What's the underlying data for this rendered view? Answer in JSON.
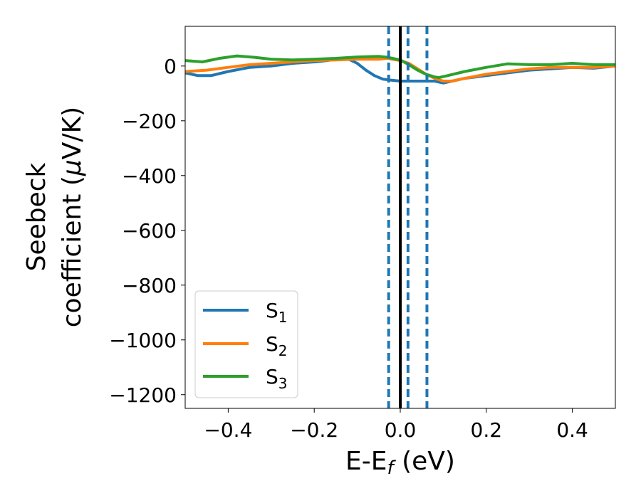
{
  "chart_data": {
    "type": "line",
    "xlabel": {
      "main": "E-E",
      "sub": "f",
      "unit": " (eV)"
    },
    "ylabel": {
      "line1": "Seebeck",
      "line2_prefix": "coefficient  (",
      "line2_mu": "μ",
      "line2_suffix": "V/K)"
    },
    "xlim": [
      -0.5,
      0.5
    ],
    "ylim": [
      -1250,
      145
    ],
    "xticks": [
      -0.4,
      -0.2,
      0.0,
      0.2,
      0.4
    ],
    "xtick_labels": [
      "−0.4",
      "−0.2",
      "0.0",
      "0.2",
      "0.4"
    ],
    "yticks": [
      0,
      -200,
      -400,
      -600,
      -800,
      -1000,
      -1200
    ],
    "ytick_labels": [
      "0",
      "−200",
      "−400",
      "−600",
      "−800",
      "−1000",
      "−1200"
    ],
    "grid": false,
    "legend_position": "bottom-left",
    "series": [
      {
        "name": "S1",
        "label_main": "S",
        "label_sub": "1",
        "color": "#1f77b4",
        "x": [
          -0.5,
          -0.47,
          -0.44,
          -0.4,
          -0.35,
          -0.3,
          -0.25,
          -0.2,
          -0.17,
          -0.14,
          -0.12,
          -0.1,
          -0.08,
          -0.06,
          -0.04,
          -0.02,
          0.0,
          0.02,
          0.05,
          0.08,
          0.1,
          0.12,
          0.15,
          0.2,
          0.25,
          0.3,
          0.35,
          0.4,
          0.45,
          0.5
        ],
        "y": [
          -25,
          -35,
          -35,
          -20,
          -5,
          0,
          10,
          15,
          20,
          28,
          25,
          10,
          -15,
          -35,
          -48,
          -52,
          -55,
          -55,
          -55,
          -55,
          -62,
          -55,
          -45,
          -35,
          -25,
          -15,
          -10,
          -5,
          -8,
          0
        ]
      },
      {
        "name": "S2",
        "label_main": "S",
        "label_sub": "2",
        "color": "#ff7f0e",
        "x": [
          -0.5,
          -0.45,
          -0.4,
          -0.35,
          -0.3,
          -0.25,
          -0.2,
          -0.15,
          -0.1,
          -0.05,
          -0.03,
          0.0,
          0.02,
          0.04,
          0.06,
          0.08,
          0.1,
          0.12,
          0.15,
          0.2,
          0.25,
          0.3,
          0.35,
          0.4,
          0.45,
          0.5
        ],
        "y": [
          -20,
          -15,
          -5,
          5,
          10,
          15,
          20,
          22,
          25,
          25,
          28,
          20,
          10,
          -10,
          -30,
          -45,
          -55,
          -55,
          -45,
          -30,
          -20,
          -10,
          -5,
          -5,
          -5,
          0
        ]
      },
      {
        "name": "S3",
        "label_main": "S",
        "label_sub": "3",
        "color": "#2ca02c",
        "x": [
          -0.5,
          -0.46,
          -0.42,
          -0.38,
          -0.34,
          -0.3,
          -0.25,
          -0.2,
          -0.15,
          -0.1,
          -0.05,
          -0.03,
          0.0,
          0.02,
          0.04,
          0.06,
          0.08,
          0.09,
          0.11,
          0.15,
          0.2,
          0.25,
          0.3,
          0.35,
          0.4,
          0.45,
          0.5
        ],
        "y": [
          20,
          15,
          28,
          37,
          32,
          25,
          22,
          25,
          28,
          33,
          35,
          32,
          22,
          5,
          -15,
          -30,
          -40,
          -42,
          -35,
          -20,
          -5,
          8,
          5,
          5,
          10,
          5,
          5
        ]
      }
    ],
    "vertical_lines": [
      {
        "x": 0.0,
        "style": "solid",
        "color": "#000000"
      },
      {
        "x": -0.027,
        "style": "dashed",
        "color": "#1f77b4"
      },
      {
        "x": 0.018,
        "style": "dashed",
        "color": "#1f77b4"
      },
      {
        "x": 0.062,
        "style": "dashed",
        "color": "#1f77b4"
      }
    ]
  }
}
